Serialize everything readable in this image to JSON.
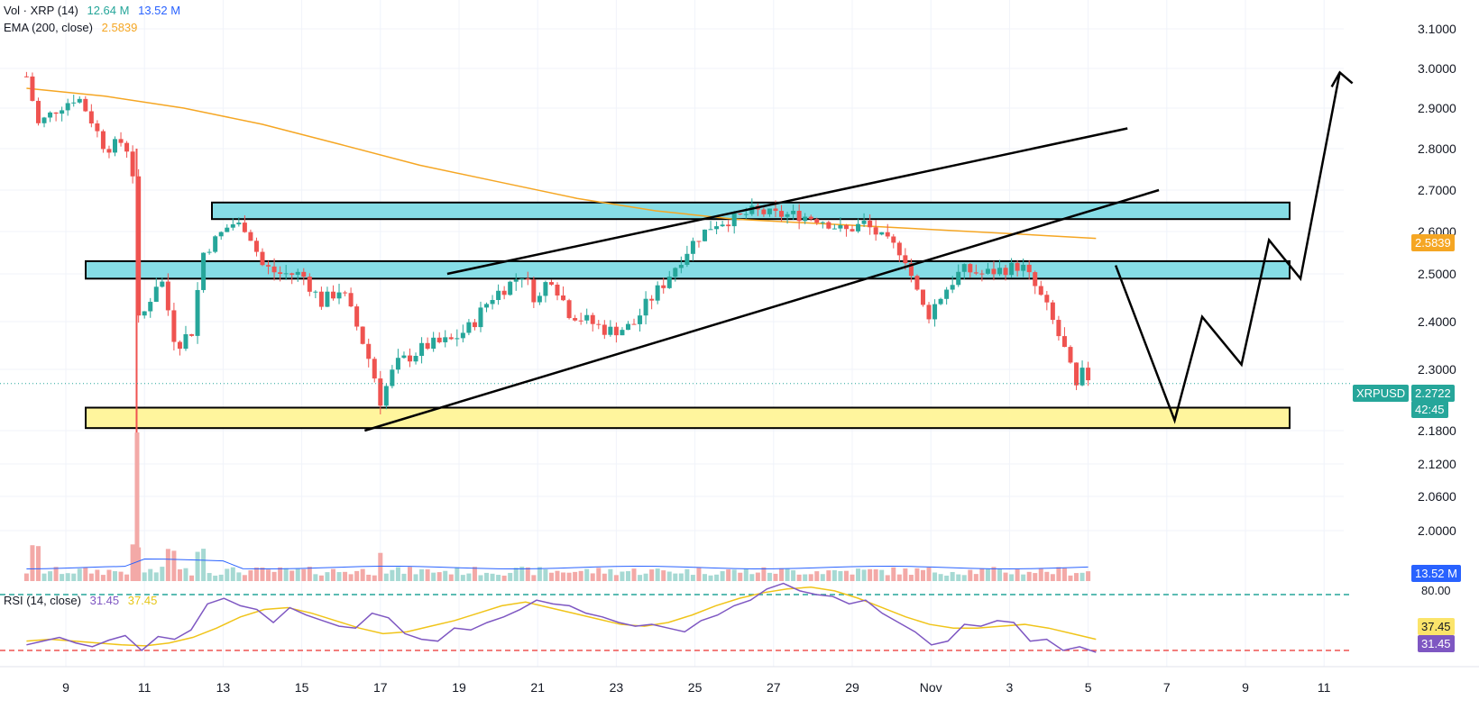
{
  "legend": {
    "vol_label": "Vol · XRP (14)",
    "vol_value1": "12.64 M",
    "vol_value2": "13.52 M",
    "ema_label": "EMA (200, close)",
    "ema_value": "2.5839",
    "rsi_label": "RSI (14, close)",
    "rsi_value": "31.45",
    "rsi_ma_value": "37.45"
  },
  "tags": {
    "ema_price": "2.5839",
    "symbol": "XRPUSD",
    "last_price": "2.2722",
    "countdown": "42:45",
    "volume": "13.52 M",
    "rsi_level": "80.00",
    "rsi_ma": "37.45",
    "rsi": "31.45"
  },
  "colors": {
    "up": "#26a69a",
    "down": "#ef5350",
    "ema": "#f5a623",
    "zone_cyan": "#86dde6",
    "zone_yellow": "#fff59d",
    "rsi": "#7e57c2",
    "rsi_ma": "#f0c419",
    "vol_ma": "#2962ff"
  },
  "chart_data": {
    "type": "candlestick",
    "symbol": "XRPUSD",
    "y_ticks": [
      3.1,
      3.0,
      2.9,
      2.8,
      2.7,
      2.6,
      2.5,
      2.4,
      2.3,
      2.18,
      2.12,
      2.06,
      2.0
    ],
    "y_tick_labels": [
      "3.1000",
      "3.0000",
      "2.9000",
      "2.8000",
      "2.7000",
      "2.6000",
      "2.5000",
      "2.4000",
      "2.3000",
      "2.1800",
      "2.1200",
      "2.0600",
      "2.0000"
    ],
    "x_tick_labels": [
      "9",
      "11",
      "13",
      "15",
      "17",
      "19",
      "21",
      "23",
      "25",
      "27",
      "29",
      "Nov",
      "3",
      "5",
      "7",
      "9",
      "11"
    ],
    "price_path": [
      [
        8.0,
        2.98
      ],
      [
        8.3,
        2.86
      ],
      [
        8.8,
        2.9
      ],
      [
        9.3,
        2.93
      ],
      [
        9.6,
        2.88
      ],
      [
        10.0,
        2.8
      ],
      [
        10.5,
        2.82
      ],
      [
        10.75,
        2.72
      ],
      [
        10.85,
        2.4
      ],
      [
        11.0,
        2.42
      ],
      [
        11.4,
        2.5
      ],
      [
        11.8,
        2.35
      ],
      [
        12.2,
        2.38
      ],
      [
        12.5,
        2.55
      ],
      [
        12.8,
        2.58
      ],
      [
        13.2,
        2.62
      ],
      [
        13.6,
        2.61
      ],
      [
        14.0,
        2.52
      ],
      [
        14.4,
        2.5
      ],
      [
        15.0,
        2.5
      ],
      [
        15.5,
        2.44
      ],
      [
        16.0,
        2.47
      ],
      [
        16.5,
        2.37
      ],
      [
        16.8,
        2.3
      ],
      [
        17.0,
        2.24
      ],
      [
        17.4,
        2.31
      ],
      [
        17.8,
        2.33
      ],
      [
        18.2,
        2.35
      ],
      [
        18.8,
        2.36
      ],
      [
        19.3,
        2.39
      ],
      [
        19.8,
        2.45
      ],
      [
        20.3,
        2.48
      ],
      [
        20.6,
        2.5
      ],
      [
        21.0,
        2.44
      ],
      [
        21.3,
        2.5
      ],
      [
        21.8,
        2.42
      ],
      [
        22.3,
        2.4
      ],
      [
        22.8,
        2.38
      ],
      [
        23.4,
        2.39
      ],
      [
        23.8,
        2.44
      ],
      [
        24.2,
        2.48
      ],
      [
        24.6,
        2.53
      ],
      [
        25.0,
        2.58
      ],
      [
        25.5,
        2.62
      ],
      [
        26.0,
        2.63
      ],
      [
        26.5,
        2.65
      ],
      [
        27.0,
        2.64
      ],
      [
        27.6,
        2.64
      ],
      [
        28.2,
        2.63
      ],
      [
        28.8,
        2.6
      ],
      [
        29.3,
        2.62
      ],
      [
        29.8,
        2.58
      ],
      [
        30.3,
        2.55
      ],
      [
        30.6,
        2.47
      ],
      [
        30.9,
        2.41
      ],
      [
        31.3,
        2.46
      ],
      [
        31.8,
        2.51
      ],
      [
        32.3,
        2.5
      ],
      [
        32.8,
        2.51
      ],
      [
        33.3,
        2.52
      ],
      [
        33.6,
        2.48
      ],
      [
        34.0,
        2.42
      ],
      [
        34.4,
        2.34
      ],
      [
        34.7,
        2.26
      ],
      [
        34.9,
        2.3
      ],
      [
        35.1,
        2.27
      ]
    ],
    "ema_200": [
      [
        8.0,
        2.95
      ],
      [
        10.0,
        2.93
      ],
      [
        12.0,
        2.9
      ],
      [
        14.0,
        2.86
      ],
      [
        16.0,
        2.81
      ],
      [
        18.0,
        2.76
      ],
      [
        20.0,
        2.72
      ],
      [
        22.0,
        2.68
      ],
      [
        24.0,
        2.65
      ],
      [
        26.0,
        2.63
      ],
      [
        28.0,
        2.62
      ],
      [
        30.0,
        2.61
      ],
      [
        32.0,
        2.6
      ],
      [
        34.0,
        2.59
      ],
      [
        35.2,
        2.5839
      ]
    ],
    "zones": [
      {
        "color": "cyan",
        "low": 2.63,
        "high": 2.67
      },
      {
        "color": "cyan",
        "low": 2.49,
        "high": 2.53
      },
      {
        "color": "yellow",
        "low": 2.185,
        "high": 2.225
      }
    ],
    "trendlines": [
      {
        "from": [
          18.7,
          2.5
        ],
        "to": [
          36.0,
          2.85
        ]
      },
      {
        "from": [
          16.6,
          2.18
        ],
        "to": [
          36.8,
          2.7
        ]
      }
    ],
    "projection": [
      [
        35.7,
        2.52
      ],
      [
        37.2,
        2.2
      ],
      [
        37.9,
        2.41
      ],
      [
        38.9,
        2.31
      ],
      [
        39.6,
        2.58
      ],
      [
        40.4,
        2.49
      ],
      [
        41.4,
        2.99
      ]
    ],
    "last_price": 2.2722,
    "rsi": {
      "levels": [
        80,
        20
      ],
      "last": 31.45,
      "ma_last": 37.45
    }
  }
}
